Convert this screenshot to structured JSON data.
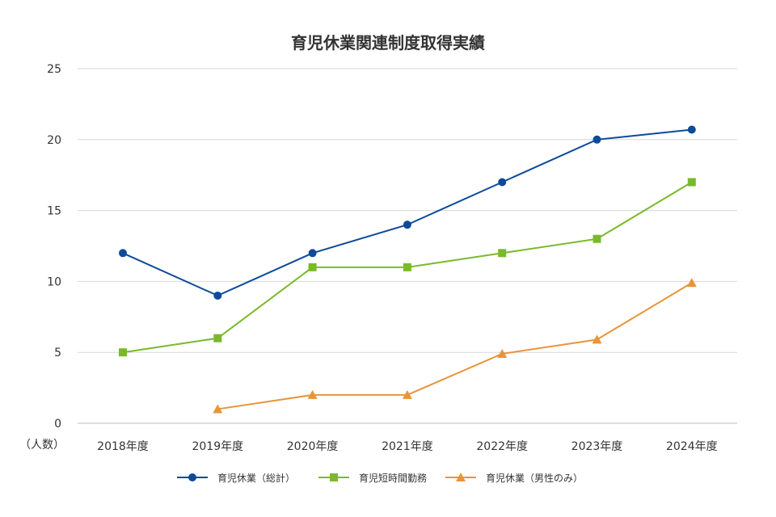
{
  "chart_data": {
    "type": "line",
    "title": "育児休業関連制度取得実績",
    "ylabel": "（人数）",
    "xlabel": "",
    "categories": [
      "2018年度",
      "2019年度",
      "2020年度",
      "2021年度",
      "2022年度",
      "2023年度",
      "2024年度"
    ],
    "ylim": [
      0,
      25
    ],
    "yticks": [
      "0",
      "5",
      "10",
      "15",
      "20",
      "25"
    ],
    "grid": true,
    "legend_position": "bottom",
    "series": [
      {
        "name": "育児休業（総計）",
        "values": [
          12,
          9,
          12,
          14,
          17,
          20,
          20.7
        ],
        "color": "#0d4a9a",
        "marker": "circle"
      },
      {
        "name": "育児短時間勤務",
        "values": [
          5,
          6,
          11,
          11,
          12,
          13,
          17
        ],
        "color": "#7ab929",
        "marker": "square"
      },
      {
        "name": "育児休業（男性のみ）",
        "values": [
          null,
          1,
          2,
          2,
          4.9,
          5.9,
          9.9
        ],
        "color": "#e8953a",
        "marker": "triangle"
      }
    ]
  }
}
